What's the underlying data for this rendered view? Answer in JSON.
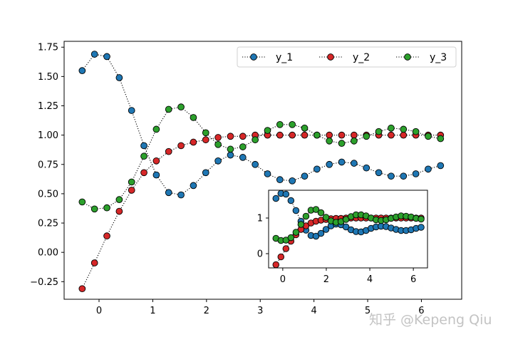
{
  "watermark": "知乎 @Kepeng Qiu",
  "colors": {
    "y_1": "#1f77b4",
    "y_2": "#d62728",
    "y_3": "#2ca02c",
    "marker_edge": "#000000",
    "line": "#000000"
  },
  "chart_data": {
    "type": "line",
    "title": "",
    "xlabel": "",
    "ylabel": "",
    "grid": false,
    "legend_position": "top-right",
    "legend_columns": 3,
    "line_style": "dotted",
    "marker": "circle",
    "main": {
      "xlim": [
        -0.65,
        6.75
      ],
      "ylim": [
        -0.4,
        1.8
      ],
      "xticks": [
        0,
        1,
        2,
        3,
        4,
        5,
        6
      ],
      "yticks": [
        -0.25,
        0.0,
        0.25,
        0.5,
        0.75,
        1.0,
        1.25,
        1.5,
        1.75
      ],
      "ytick_labels": [
        "−0.25",
        "0.00",
        "0.25",
        "0.50",
        "0.75",
        "1.00",
        "1.25",
        "1.50",
        "1.75"
      ]
    },
    "inset": {
      "xlim": [
        -0.65,
        6.65
      ],
      "ylim": [
        -0.4,
        1.78
      ],
      "xticks": [
        0,
        2,
        4,
        6
      ],
      "yticks": [
        0,
        1
      ]
    },
    "x": [
      -0.314,
      -0.084,
      0.146,
      0.376,
      0.606,
      0.836,
      1.066,
      1.296,
      1.526,
      1.756,
      1.986,
      2.216,
      2.446,
      2.676,
      2.906,
      3.136,
      3.366,
      3.596,
      3.826,
      4.056,
      4.286,
      4.516,
      4.746,
      4.976,
      5.206,
      5.436,
      5.666,
      5.896,
      6.126,
      6.356
    ],
    "series": [
      {
        "name": "y_1",
        "color": "#1f77b4",
        "values": [
          1.55,
          1.69,
          1.67,
          1.49,
          1.21,
          0.91,
          0.66,
          0.51,
          0.49,
          0.57,
          0.68,
          0.78,
          0.83,
          0.81,
          0.75,
          0.67,
          0.62,
          0.61,
          0.65,
          0.71,
          0.75,
          0.77,
          0.76,
          0.72,
          0.68,
          0.65,
          0.65,
          0.67,
          0.71,
          0.74
        ]
      },
      {
        "name": "y_2",
        "color": "#d62728",
        "values": [
          -0.31,
          -0.09,
          0.14,
          0.35,
          0.53,
          0.68,
          0.78,
          0.86,
          0.91,
          0.94,
          0.96,
          0.98,
          0.99,
          0.99,
          1.0,
          1.0,
          1.0,
          1.0,
          1.0,
          1.0,
          1.0,
          1.0,
          1.0,
          1.0,
          1.0,
          1.0,
          1.0,
          1.0,
          1.0,
          1.0
        ]
      },
      {
        "name": "y_3",
        "color": "#2ca02c",
        "values": [
          0.43,
          0.37,
          0.38,
          0.45,
          0.6,
          0.82,
          1.05,
          1.22,
          1.24,
          1.15,
          1.02,
          0.92,
          0.88,
          0.9,
          0.96,
          1.04,
          1.09,
          1.09,
          1.06,
          1.0,
          0.95,
          0.93,
          0.95,
          0.99,
          1.03,
          1.06,
          1.05,
          1.03,
          0.99,
          0.97
        ]
      }
    ]
  }
}
